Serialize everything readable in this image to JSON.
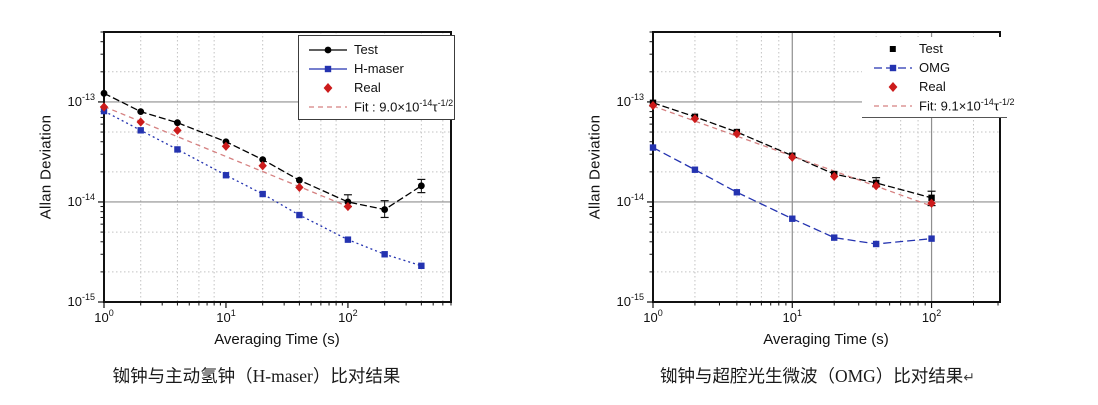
{
  "page": {
    "background": "#ffffff"
  },
  "colors": {
    "test": "#000000",
    "maser_omg": "#2433b0",
    "real": "#cc1b1b",
    "fit": "#d58080",
    "grid_solid": "#8f8f8f",
    "grid_dotted": "#c3c3c3",
    "frame": "#111111"
  },
  "chart_data": [
    {
      "type": "line",
      "caption": "铷钟与主动氢钟（H-maser）比对结果",
      "xlabel": "Averaging Time (s)",
      "ylabel": "Allan Deviation",
      "xlim": [
        1,
        700
      ],
      "ylim": [
        1e-15,
        5e-13
      ],
      "xscale": "log",
      "yscale": "log",
      "xticks": [
        {
          "value": 1,
          "base": "10",
          "exp": "0"
        },
        {
          "value": 10,
          "base": "10",
          "exp": "1"
        },
        {
          "value": 100,
          "base": "10",
          "exp": "2"
        }
      ],
      "yticks": [
        {
          "value": 1e-13,
          "base": "10",
          "exp": "-13"
        },
        {
          "value": 1e-14,
          "base": "10",
          "exp": "-14"
        },
        {
          "value": 1e-15,
          "base": "10",
          "exp": "-15"
        }
      ],
      "grid": {
        "solid_h": [
          1e-13,
          1e-14
        ],
        "solid_v": [
          1
        ],
        "dot_h": [
          2e-13,
          5e-14,
          2e-14,
          5e-15,
          2e-15
        ],
        "dot_v": [
          2,
          4,
          6,
          8,
          20,
          40,
          60,
          80,
          200,
          400,
          600
        ]
      },
      "series": [
        {
          "name": "Test",
          "color": "#000000",
          "marker": "circle",
          "line": "dash",
          "dash": "7,3",
          "x": [
            1,
            2,
            4,
            10,
            20,
            40,
            100,
            200,
            400
          ],
          "y": [
            1.22e-13,
            8e-14,
            6.2e-14,
            4e-14,
            2.65e-14,
            1.65e-14,
            1e-14,
            8.4e-15,
            1.45e-14
          ]
        },
        {
          "name": "H-maser",
          "color": "#2433b0",
          "marker": "square",
          "line": "dot",
          "dash": "2,3",
          "x": [
            1,
            2,
            4,
            10,
            20,
            40,
            100,
            200,
            400
          ],
          "y": [
            8.1e-14,
            5.2e-14,
            3.35e-14,
            1.85e-14,
            1.2e-14,
            7.4e-15,
            4.2e-15,
            3e-15,
            2.3e-15
          ]
        },
        {
          "name": "Real",
          "color": "#cc1b1b",
          "marker": "diamond",
          "line": "none",
          "dash": "",
          "x": [
            1,
            2,
            4,
            10,
            20,
            40,
            100
          ],
          "y": [
            8.9e-14,
            6.3e-14,
            5.2e-14,
            3.6e-14,
            2.3e-14,
            1.4e-14,
            9e-15
          ]
        },
        {
          "name": "Fit",
          "color": "#d58080",
          "marker": "none",
          "line": "dash",
          "dash": "5,4",
          "x": [
            1,
            100
          ],
          "y": [
            9e-14,
            9e-15
          ]
        }
      ],
      "error_bars": [
        {
          "x": 100,
          "low": 9e-15,
          "high": 1.18e-14
        },
        {
          "x": 200,
          "low": 7e-15,
          "high": 1.03e-14
        },
        {
          "x": 400,
          "low": 1.24e-14,
          "high": 1.68e-14
        }
      ],
      "legend": {
        "position": "upper-right-boxed",
        "items": [
          "Test",
          "H-maser",
          "Real"
        ],
        "fit": {
          "pre": "Fit :  9.0×10",
          "exp": "-14",
          "tau": "τ",
          "exp2": "-1/2"
        }
      }
    },
    {
      "type": "line",
      "caption": "铷钟与超腔光生微波（OMG）比对结果",
      "return_mark": "↵",
      "xlabel": "Averaging Time (s)",
      "ylabel": "Allan Deviation",
      "xlim": [
        1,
        310
      ],
      "ylim": [
        1e-15,
        5e-13
      ],
      "xscale": "log",
      "yscale": "log",
      "xticks": [
        {
          "value": 1,
          "base": "10",
          "exp": "0"
        },
        {
          "value": 10,
          "base": "10",
          "exp": "1"
        },
        {
          "value": 100,
          "base": "10",
          "exp": "2"
        }
      ],
      "yticks": [
        {
          "value": 1e-13,
          "base": "10",
          "exp": "-13"
        },
        {
          "value": 1e-14,
          "base": "10",
          "exp": "-14"
        },
        {
          "value": 1e-15,
          "base": "10",
          "exp": "-15"
        }
      ],
      "grid": {
        "solid_h": [
          1e-13,
          1e-14
        ],
        "solid_v": [
          1,
          10,
          100
        ],
        "dot_h": [
          2e-13,
          5e-14,
          2e-14,
          5e-15,
          2e-15
        ],
        "dot_v": [
          2,
          4,
          6,
          8,
          20,
          40,
          60,
          80,
          200
        ]
      },
      "series": [
        {
          "name": "Test",
          "color": "#000000",
          "marker": "square",
          "line": "dash",
          "dash": "7,3",
          "x": [
            1,
            2,
            4,
            10,
            20,
            40,
            100
          ],
          "y": [
            9.8e-14,
            7.1e-14,
            5e-14,
            2.9e-14,
            1.9e-14,
            1.55e-14,
            1.1e-14
          ]
        },
        {
          "name": "OMG",
          "color": "#2433b0",
          "marker": "square",
          "line": "dash",
          "dash": "8,4",
          "x": [
            1,
            2,
            4,
            10,
            20,
            40,
            100
          ],
          "y": [
            3.5e-14,
            2.1e-14,
            1.25e-14,
            6.8e-15,
            4.4e-15,
            3.8e-15,
            4.3e-15
          ]
        },
        {
          "name": "Real",
          "color": "#cc1b1b",
          "marker": "diamond",
          "line": "none",
          "dash": "",
          "x": [
            1,
            2,
            4,
            10,
            20,
            40,
            100
          ],
          "y": [
            9.2e-14,
            6.8e-14,
            4.8e-14,
            2.8e-14,
            1.8e-14,
            1.45e-14,
            9.7e-15
          ]
        },
        {
          "name": "Fit",
          "color": "#d58080",
          "marker": "none",
          "line": "dash",
          "dash": "5,4",
          "x": [
            1,
            100
          ],
          "y": [
            9.1e-14,
            9.1e-15
          ]
        }
      ],
      "error_bars": [
        {
          "x": 40,
          "low": 1.42e-14,
          "high": 1.75e-14
        },
        {
          "x": 100,
          "low": 9.2e-15,
          "high": 1.28e-14
        }
      ],
      "legend": {
        "position": "upper-right-underlined",
        "items": [
          "Test",
          "OMG",
          "Real"
        ],
        "fit": {
          "pre": "Fit: 9.1×10",
          "exp": "-14",
          "tau": "τ",
          "exp2": "-1/2"
        }
      }
    }
  ]
}
